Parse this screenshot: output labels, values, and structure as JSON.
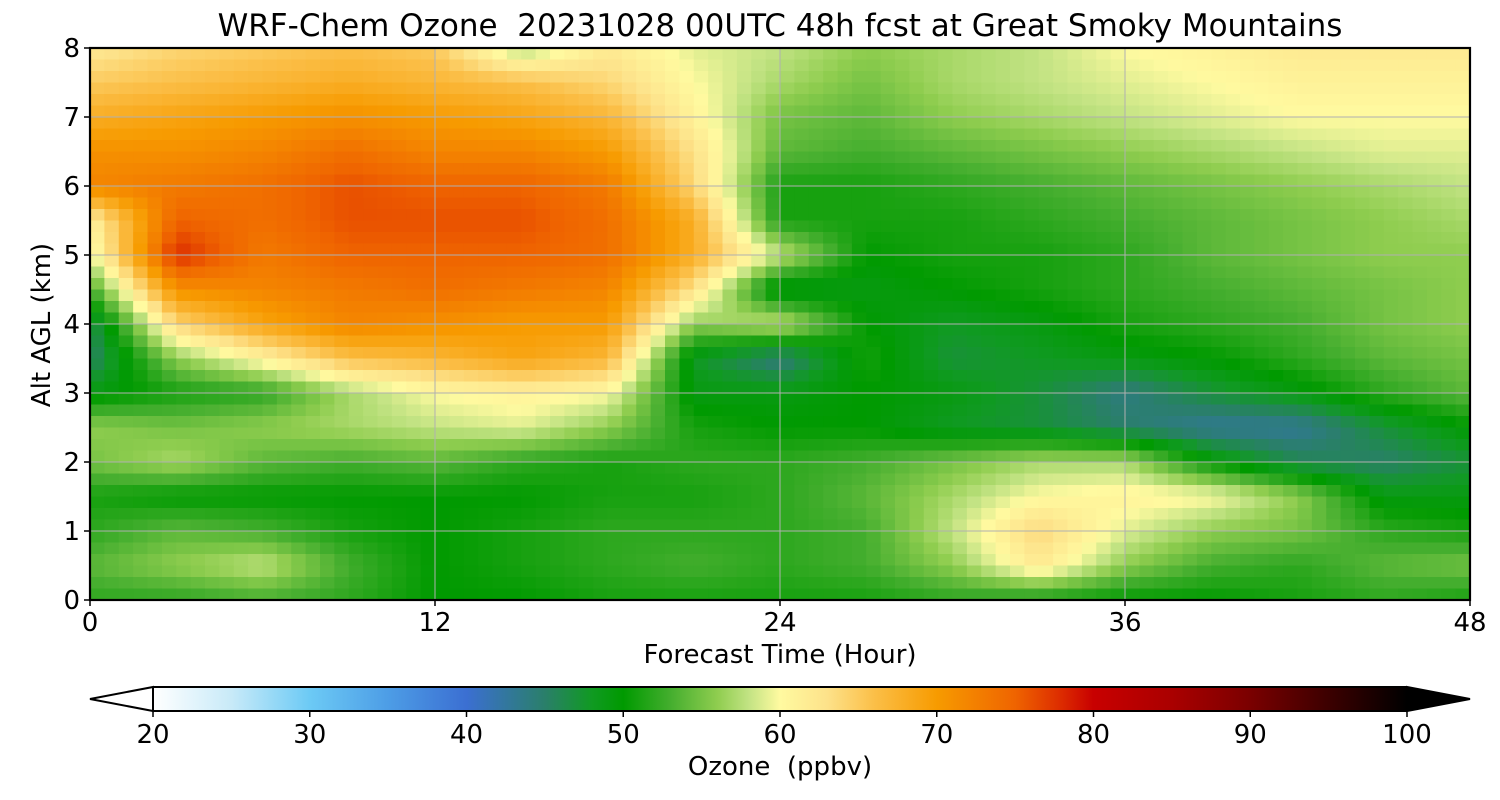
{
  "chart_data": {
    "type": "heatmap",
    "title": "WRF-Chem Ozone  20231028 00UTC 48h fcst at Great Smoky Mountains",
    "xlabel": "Forecast Time (Hour)",
    "ylabel": "Alt AGL (km)",
    "xlim": [
      0,
      48
    ],
    "ylim": [
      0,
      8
    ],
    "xticks": [
      "0",
      "12",
      "24",
      "36",
      "48"
    ],
    "yticks": [
      "0",
      "1",
      "2",
      "3",
      "4",
      "5",
      "6",
      "7",
      "8"
    ],
    "grid": true,
    "z_units": "ppbv",
    "x": [
      0,
      3,
      6,
      9,
      12,
      15,
      18,
      21,
      24,
      27,
      30,
      33,
      36,
      39,
      42,
      45,
      48
    ],
    "y": [
      0,
      0.5,
      1,
      1.5,
      2,
      2.5,
      3,
      3.5,
      4,
      4.5,
      5,
      5.5,
      6,
      6.5,
      7,
      7.5,
      8
    ],
    "z": [
      [
        52,
        52,
        53,
        52,
        50,
        50,
        51,
        51,
        51,
        51,
        52,
        51,
        50,
        50,
        51,
        52,
        51
      ],
      [
        54,
        56,
        58,
        53,
        50,
        51,
        52,
        53,
        52,
        53,
        56,
        62,
        56,
        53,
        52,
        54,
        55
      ],
      [
        52,
        54,
        53,
        51,
        50,
        51,
        52,
        52,
        52,
        53,
        58,
        64,
        59,
        56,
        55,
        52,
        51
      ],
      [
        51,
        50,
        50,
        50,
        50,
        50,
        51,
        51,
        52,
        54,
        57,
        60,
        61,
        60,
        56,
        49,
        49
      ],
      [
        55,
        57,
        54,
        53,
        54,
        52,
        51,
        52,
        52,
        53,
        55,
        57,
        57,
        50,
        46,
        45,
        47
      ],
      [
        56,
        55,
        56,
        57,
        58,
        59,
        56,
        51,
        50,
        50,
        48,
        47,
        45,
        43,
        43,
        47,
        50
      ],
      [
        49,
        51,
        52,
        57,
        60,
        61,
        60,
        49,
        49,
        50,
        49,
        47,
        44,
        47,
        49,
        52,
        54
      ],
      [
        45,
        56,
        61,
        66,
        67,
        69,
        67,
        48,
        44,
        51,
        47,
        48,
        49,
        50,
        52,
        54,
        55
      ],
      [
        46,
        64,
        69,
        72,
        71,
        70,
        70,
        56,
        58,
        50,
        48,
        49,
        51,
        52,
        53,
        55,
        56
      ],
      [
        53,
        71,
        72,
        73,
        74,
        73,
        72,
        63,
        48,
        49,
        50,
        51,
        52,
        53,
        54,
        55,
        56
      ],
      [
        59,
        78,
        73,
        75,
        75,
        75,
        74,
        68,
        58,
        50,
        51,
        51,
        52,
        54,
        55,
        56,
        56
      ],
      [
        61,
        75,
        74,
        76,
        76,
        76,
        74,
        68,
        51,
        51,
        51,
        52,
        53,
        54,
        55,
        56,
        57
      ],
      [
        72,
        73,
        74,
        76,
        75,
        75,
        73,
        64,
        51,
        51,
        52,
        53,
        54,
        55,
        56,
        57,
        58
      ],
      [
        71,
        71,
        72,
        74,
        72,
        72,
        70,
        63,
        54,
        53,
        54,
        55,
        56,
        57,
        58,
        59,
        59
      ],
      [
        68,
        69,
        70,
        71,
        70,
        69,
        67,
        61,
        55,
        54,
        56,
        57,
        58,
        59,
        60,
        60,
        60
      ],
      [
        65,
        66,
        67,
        68,
        67,
        66,
        64,
        60,
        57,
        55,
        57,
        58,
        59,
        60,
        61,
        61,
        61
      ],
      [
        62,
        64,
        65,
        66,
        65,
        57,
        62,
        59,
        58,
        56,
        57,
        58,
        60,
        61,
        62,
        62,
        62
      ]
    ],
    "colorbar": {
      "label": "Ozone  (ppbv)",
      "ticks": [
        "20",
        "30",
        "40",
        "50",
        "60",
        "70",
        "80",
        "90",
        "100"
      ],
      "min": 20,
      "max": 100,
      "extend": "both",
      "colormap": [
        [
          20,
          "#ffffff"
        ],
        [
          25,
          "#c8eaf8"
        ],
        [
          30,
          "#6ccaf5"
        ],
        [
          35,
          "#4d9de6"
        ],
        [
          40,
          "#3b6fd2"
        ],
        [
          45,
          "#2a7f6a"
        ],
        [
          48,
          "#109a22"
        ],
        [
          50,
          "#009a00"
        ],
        [
          53,
          "#44ae2e"
        ],
        [
          56,
          "#8fcd4f"
        ],
        [
          58,
          "#c2e383"
        ],
        [
          60,
          "#fffaa0"
        ],
        [
          63,
          "#fde28a"
        ],
        [
          66,
          "#fbbf48"
        ],
        [
          70,
          "#f79b00"
        ],
        [
          75,
          "#ef6400"
        ],
        [
          78,
          "#dc2a00"
        ],
        [
          80,
          "#c80000"
        ],
        [
          85,
          "#aa0000"
        ],
        [
          90,
          "#7a0000"
        ],
        [
          95,
          "#3c0000"
        ],
        [
          100,
          "#000000"
        ]
      ]
    }
  }
}
